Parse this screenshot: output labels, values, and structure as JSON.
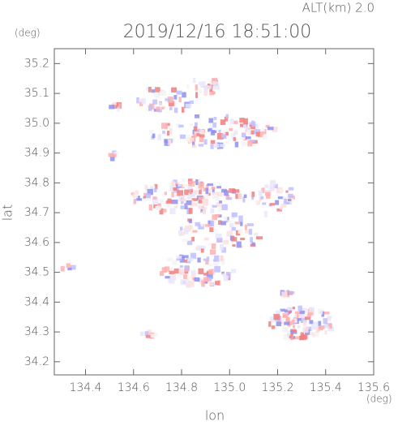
{
  "chart_data": {
    "type": "map",
    "title": "2019/12/16 18:51:00",
    "subtitle": "ALT(km) 2.0",
    "x_label": "lon",
    "x_unit": "(deg)",
    "y_label": "lat",
    "y_unit": "(deg)",
    "xlim": [
      134.27,
      135.6
    ],
    "xticks": [
      134.4,
      134.6,
      134.8,
      {
        "value": 135,
        "label": "135.0"
      },
      135.2,
      135.4,
      135.6
    ],
    "ylim": [
      34.156,
      35.25
    ],
    "yticks": [
      34.2,
      34.3,
      34.4,
      34.5,
      34.6,
      34.7,
      34.8,
      34.9,
      {
        "value": 35,
        "label": "35.0"
      },
      35.1,
      35.2
    ]
  }
}
